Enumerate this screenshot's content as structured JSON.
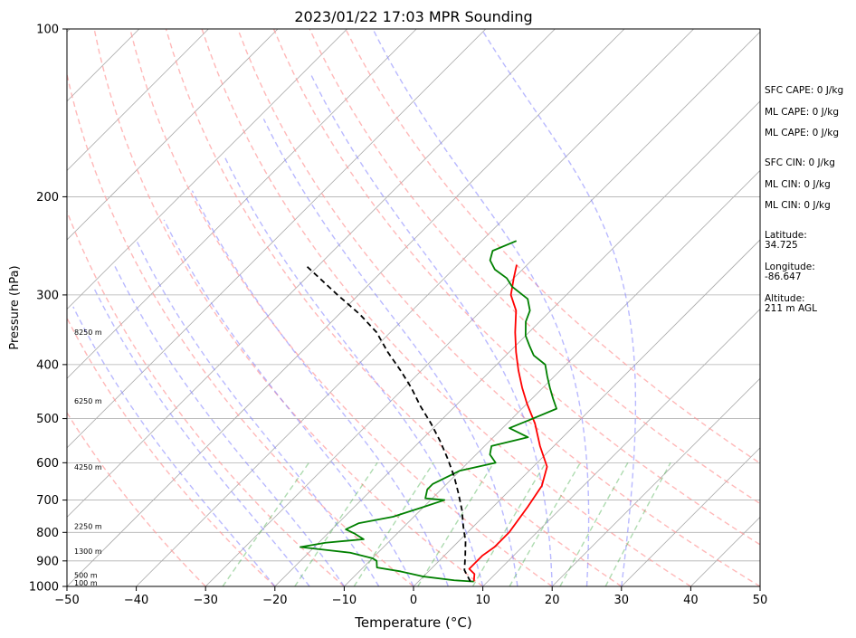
{
  "chart_data": {
    "type": "line",
    "title": "2023/01/22 17:03 MPR Sounding",
    "xlabel": "Temperature (°C)",
    "ylabel": "Pressure (hPa)",
    "xlim": [
      -50,
      50
    ],
    "ylim": [
      1000,
      100
    ],
    "yscale": "log",
    "skew": true,
    "x_ticks": [
      -50,
      -40,
      -30,
      -20,
      -10,
      0,
      10,
      20,
      30,
      40,
      50
    ],
    "y_ticks": [
      1000,
      900,
      800,
      700,
      600,
      500,
      400,
      300,
      200,
      100
    ],
    "grid": true,
    "height_labels": [
      {
        "p": 985,
        "label": "100 m"
      },
      {
        "p": 955,
        "label": "500 m"
      },
      {
        "p": 865,
        "label": "1300 m"
      },
      {
        "p": 780,
        "label": "2250 m"
      },
      {
        "p": 610,
        "label": "4250 m"
      },
      {
        "p": 465,
        "label": "6250 m"
      },
      {
        "p": 350,
        "label": "8250 m"
      }
    ],
    "dry_adiabats_theta_c": [
      -30,
      -20,
      -10,
      0,
      10,
      20,
      30,
      40,
      50,
      60,
      70,
      80
    ],
    "moist_adiabats_c": [
      -20,
      -15,
      -10,
      -5,
      0,
      5,
      10,
      15,
      20,
      25,
      30
    ],
    "mixing_ratio_lines_gkg": [
      0.4,
      1,
      2,
      4,
      7,
      10,
      16,
      24
    ],
    "series": [
      {
        "name": "",
        "style": "temperature",
        "color": "#ff0000",
        "points": [
          [
            8,
            980
          ],
          [
            7,
            950
          ],
          [
            5.5,
            930
          ],
          [
            5.5,
            880
          ],
          [
            6,
            850
          ],
          [
            6,
            800
          ],
          [
            5,
            720
          ],
          [
            4,
            660
          ],
          [
            2,
            610
          ],
          [
            -2,
            560
          ],
          [
            -6,
            510
          ],
          [
            -10,
            470
          ],
          [
            -13,
            440
          ],
          [
            -16,
            410
          ],
          [
            -19,
            380
          ],
          [
            -22,
            350
          ],
          [
            -25,
            320
          ],
          [
            -28,
            300
          ],
          [
            -30,
            280
          ],
          [
            -31.5,
            265
          ]
        ]
      },
      {
        "name": "",
        "style": "dewpoint",
        "color": "#008000",
        "points": [
          [
            8,
            980
          ],
          [
            5,
            975
          ],
          [
            0,
            960
          ],
          [
            -4,
            940
          ],
          [
            -8,
            925
          ],
          [
            -9,
            900
          ],
          [
            -10,
            890
          ],
          [
            -13,
            875
          ],
          [
            -14,
            870
          ],
          [
            -18,
            860
          ],
          [
            -22,
            850
          ],
          [
            -19,
            835
          ],
          [
            -14,
            823
          ],
          [
            -16,
            805
          ],
          [
            -18,
            790
          ],
          [
            -17,
            770
          ],
          [
            -13,
            750
          ],
          [
            -10,
            720
          ],
          [
            -8,
            700
          ],
          [
            -11,
            695
          ],
          [
            -12,
            670
          ],
          [
            -12,
            655
          ],
          [
            -10,
            620
          ],
          [
            -6,
            600
          ],
          [
            -8,
            580
          ],
          [
            -9,
            560
          ],
          [
            -5,
            540
          ],
          [
            -9,
            520
          ],
          [
            -7,
            500
          ],
          [
            -5,
            480
          ],
          [
            -7,
            460
          ],
          [
            -9,
            440
          ],
          [
            -11,
            420
          ],
          [
            -13,
            400
          ],
          [
            -16,
            385
          ],
          [
            -18,
            370
          ],
          [
            -20,
            355
          ],
          [
            -22,
            335
          ],
          [
            -23,
            320
          ],
          [
            -25,
            305
          ],
          [
            -29,
            290
          ],
          [
            -31,
            280
          ],
          [
            -34,
            270
          ],
          [
            -36,
            260
          ],
          [
            -37,
            250
          ],
          [
            -35,
            240
          ]
        ]
      },
      {
        "name": "",
        "style": "parcel",
        "color": "#000000",
        "points": [
          [
            7.5,
            980
          ],
          [
            5,
            935
          ],
          [
            3,
            880
          ],
          [
            1,
            830
          ],
          [
            -1.5,
            780
          ],
          [
            -4,
            730
          ],
          [
            -7,
            680
          ],
          [
            -10,
            635
          ],
          [
            -13.5,
            590
          ],
          [
            -17,
            550
          ],
          [
            -21,
            510
          ],
          [
            -25,
            475
          ],
          [
            -29,
            440
          ],
          [
            -33,
            410
          ],
          [
            -37.5,
            380
          ],
          [
            -42,
            350
          ],
          [
            -47,
            325
          ],
          [
            -53,
            300
          ],
          [
            -58,
            280
          ],
          [
            -62,
            265
          ]
        ]
      }
    ]
  },
  "sidebar": {
    "sfc_cape": "SFC CAPE: 0 J/kg",
    "ml_cape_1": "ML CAPE: 0 J/kg",
    "ml_cape_2": "ML CAPE: 0 J/kg",
    "sfc_cin": "SFC CIN: 0 J/kg",
    "ml_cin_1": "ML CIN: 0 J/kg",
    "ml_cin_2": "ML CIN: 0 J/kg",
    "latitude": "Latitude:\n34.725",
    "longitude": "Longitude:\n-86.647",
    "altitude": "Altitude:\n211 m AGL"
  }
}
